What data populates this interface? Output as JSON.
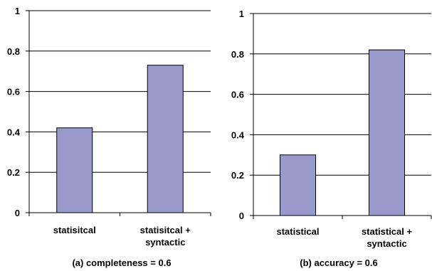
{
  "chart_data": [
    {
      "type": "bar",
      "title": "(a) completeness = 0.6",
      "categories": [
        [
          "statisitcal"
        ],
        [
          "statisitcal +",
          "syntactic"
        ]
      ],
      "values": [
        0.42,
        0.73
      ],
      "ylim": [
        0,
        1
      ],
      "yticks": [
        "0",
        "0.2",
        "0.4",
        "0.6",
        "0.8",
        "1"
      ],
      "ytick_values": [
        0,
        0.2,
        0.4,
        0.6,
        0.8,
        1
      ],
      "grid": true,
      "bar_color": "#9999cc",
      "xlabel": "",
      "ylabel": ""
    },
    {
      "type": "bar",
      "title": "(b) accuracy = 0.6",
      "categories": [
        [
          "statistical"
        ],
        [
          "statistical +",
          "syntactic"
        ]
      ],
      "values": [
        0.3,
        0.82
      ],
      "ylim": [
        0,
        1
      ],
      "yticks": [
        "0",
        "0.2",
        "0.4",
        "0.6",
        "0.8",
        "1"
      ],
      "ytick_values": [
        0,
        0.2,
        0.4,
        0.6,
        0.8,
        1
      ],
      "grid": true,
      "bar_color": "#9999cc",
      "xlabel": "",
      "ylabel": ""
    }
  ]
}
